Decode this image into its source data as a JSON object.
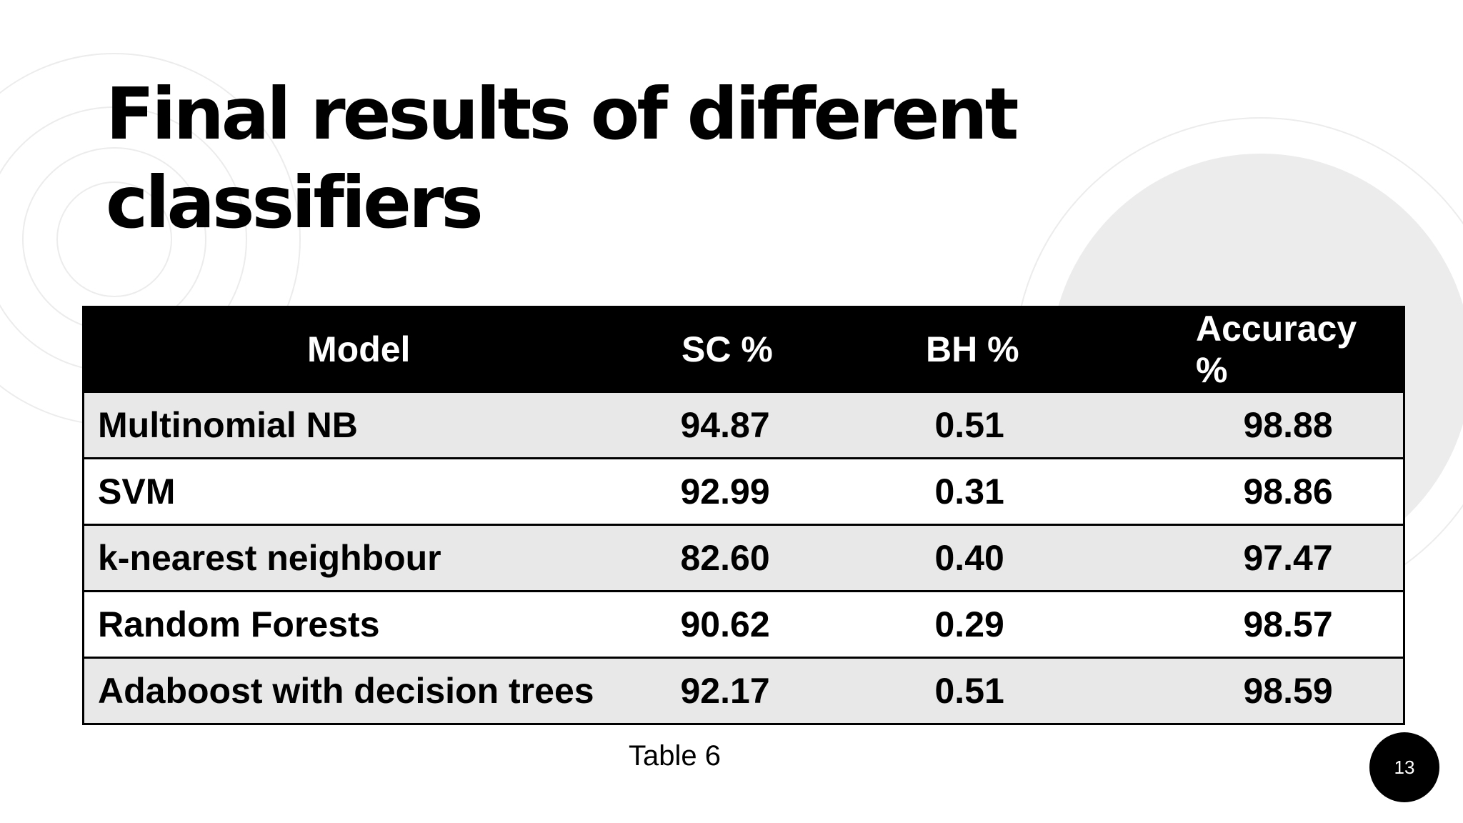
{
  "slide": {
    "title": "Final results of different classifiers",
    "caption": "Table 6",
    "page_number": "13"
  },
  "table": {
    "headers": [
      "Model",
      "SC %",
      "BH %",
      "Accuracy %"
    ],
    "rows": [
      [
        "Multinomial NB",
        "94.87",
        "0.51",
        "98.88"
      ],
      [
        "SVM",
        "92.99",
        "0.31",
        "98.86"
      ],
      [
        "k-nearest neighbour",
        "82.60",
        "0.40",
        "97.47"
      ],
      [
        "Random Forests",
        "90.62",
        "0.29",
        "98.57"
      ],
      [
        "Adaboost with decision trees",
        "92.17",
        "0.51",
        "98.59"
      ]
    ]
  },
  "colors": {
    "header_background": "#000000",
    "header_text": "#ffffff",
    "shaded_row": "#e8e8e8",
    "plain_row": "#ffffff",
    "decor_circle": "#ececec"
  }
}
